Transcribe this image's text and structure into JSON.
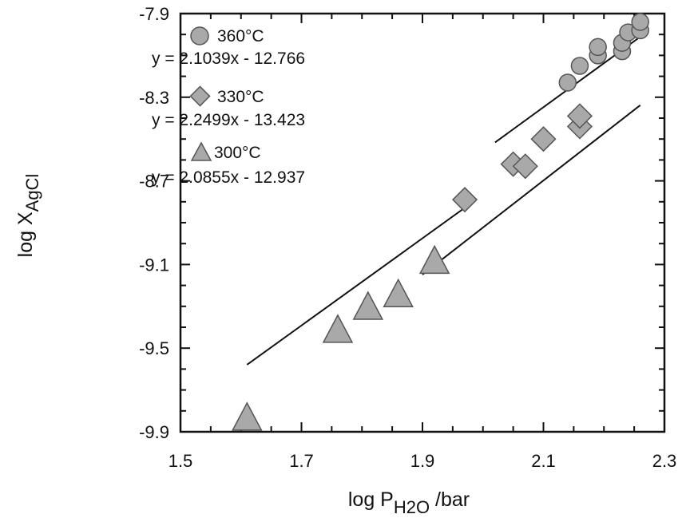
{
  "chart_data": {
    "type": "scatter",
    "title": "",
    "xlabel": {
      "main": "log P",
      "sub": "H2O",
      "suffix": " /bar"
    },
    "ylabel": {
      "main": "log X",
      "sub": "AgCl"
    },
    "xlim": [
      1.5,
      2.3
    ],
    "ylim": [
      -9.9,
      -7.9
    ],
    "x_ticks": [
      1.5,
      1.7,
      1.9,
      2.1,
      2.3
    ],
    "x_tick_labels": [
      "1.5",
      "1.7",
      "1.9",
      "2.1",
      "2.3"
    ],
    "y_ticks": [
      -7.9,
      -8.3,
      -8.7,
      -9.1,
      -9.5,
      -9.9
    ],
    "y_tick_labels": [
      "-7.9",
      "-8.3",
      "-8.7",
      "-9.1",
      "-9.5",
      "-9.9"
    ],
    "grid": false,
    "legend_position": "top-left",
    "series": [
      {
        "name": "360°C",
        "equation": "y = 2.1039x - 12.766",
        "marker": "circle",
        "color": "#a9a9a9",
        "fit_x": [
          2.02,
          2.27
        ],
        "points": [
          {
            "x": 2.14,
            "y": -8.23
          },
          {
            "x": 2.16,
            "y": -8.15
          },
          {
            "x": 2.19,
            "y": -8.1
          },
          {
            "x": 2.19,
            "y": -8.06
          },
          {
            "x": 2.23,
            "y": -8.08
          },
          {
            "x": 2.23,
            "y": -8.04
          },
          {
            "x": 2.24,
            "y": -7.99
          },
          {
            "x": 2.26,
            "y": -7.98
          },
          {
            "x": 2.26,
            "y": -7.94
          }
        ]
      },
      {
        "name": "330°C",
        "equation": "y = 2.2499x - 13.423",
        "marker": "diamond",
        "color": "#a9a9a9",
        "fit_x": [
          1.9,
          2.26
        ],
        "points": [
          {
            "x": 1.97,
            "y": -8.79
          },
          {
            "x": 2.05,
            "y": -8.62
          },
          {
            "x": 2.07,
            "y": -8.63
          },
          {
            "x": 2.1,
            "y": -8.5
          },
          {
            "x": 2.16,
            "y": -8.44
          },
          {
            "x": 2.16,
            "y": -8.39
          }
        ]
      },
      {
        "name": "300°C",
        "equation": "y = 2.0855x - 12.937",
        "marker": "triangle",
        "color": "#a9a9a9",
        "fit_x": [
          1.61,
          1.99
        ],
        "points": [
          {
            "x": 1.61,
            "y": -9.84
          },
          {
            "x": 1.76,
            "y": -9.42
          },
          {
            "x": 1.81,
            "y": -9.31
          },
          {
            "x": 1.86,
            "y": -9.25
          },
          {
            "x": 1.92,
            "y": -9.09
          }
        ]
      }
    ]
  }
}
